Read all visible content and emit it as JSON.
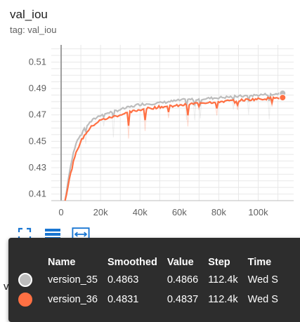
{
  "card": {
    "title": "val_iou",
    "tag": "tag: val_iou"
  },
  "below_label": "val_loss",
  "toolbar": {
    "icons": [
      "fit-domain-icon",
      "data-table-icon",
      "expand-icon"
    ]
  },
  "colors": {
    "version_35": "#bdbdbd",
    "version_36": "#ff7043",
    "accent": "#1976d2"
  },
  "chart_data": {
    "type": "line",
    "xlabel": "",
    "ylabel": "",
    "xlim": [
      -5000,
      118000
    ],
    "ylim": [
      0.405,
      0.523
    ],
    "x_ticks": [
      0,
      20000,
      40000,
      60000,
      80000,
      100000
    ],
    "x_tick_labels": [
      "0",
      "20k",
      "40k",
      "60k",
      "80k",
      "100k"
    ],
    "y_ticks": [
      0.41,
      0.43,
      0.45,
      0.47,
      0.49,
      0.51
    ],
    "y_tick_labels": [
      "0.41",
      "0.43",
      "0.45",
      "0.47",
      "0.49",
      "0.51"
    ],
    "grid": true,
    "series": [
      {
        "name": "version_35",
        "color": "#bdbdbd",
        "x": [
          2000,
          4000,
          6000,
          8000,
          10000,
          13000,
          16000,
          20000,
          25000,
          30000,
          35000,
          40000,
          50000,
          60000,
          70000,
          80000,
          90000,
          100000,
          112400
        ],
        "y": [
          0.405,
          0.425,
          0.44,
          0.45,
          0.456,
          0.462,
          0.466,
          0.47,
          0.472,
          0.474,
          0.476,
          0.478,
          0.479,
          0.481,
          0.482,
          0.483,
          0.484,
          0.485,
          0.4863
        ]
      },
      {
        "name": "version_36",
        "color": "#ff7043",
        "x": [
          2000,
          4000,
          6000,
          8000,
          10000,
          13000,
          16000,
          20000,
          25000,
          30000,
          35000,
          40000,
          50000,
          60000,
          70000,
          80000,
          90000,
          100000,
          112400
        ],
        "y": [
          0.405,
          0.42,
          0.433,
          0.443,
          0.45,
          0.457,
          0.462,
          0.466,
          0.468,
          0.47,
          0.472,
          0.474,
          0.476,
          0.477,
          0.479,
          0.48,
          0.481,
          0.482,
          0.4831
        ]
      }
    ]
  },
  "tooltip": {
    "headers": [
      "Name",
      "Smoothed",
      "Value",
      "Step",
      "Time"
    ],
    "rows": [
      {
        "name": "version_35",
        "smoothed": "0.4863",
        "value": "0.4866",
        "step": "112.4k",
        "time": "Wed S"
      },
      {
        "name": "version_36",
        "smoothed": "0.4831",
        "value": "0.4837",
        "step": "112.4k",
        "time": "Wed S"
      }
    ]
  }
}
